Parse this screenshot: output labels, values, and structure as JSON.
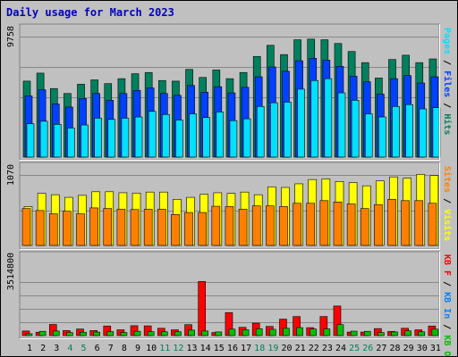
{
  "title": "Daily usage for March 2023",
  "colors": {
    "background": "#c0c0c0",
    "title": "#0000c0",
    "hits": "#00805c",
    "files": "#0040ff",
    "pages": "#00e0ff",
    "visits": "#ffff00",
    "sites": "#ff8000",
    "kb_in": "#0080ff",
    "kb_out": "#00c000",
    "kb_f": "#ff0000",
    "weekend_label": "#00805c"
  },
  "chart_data": [
    {
      "type": "bar",
      "panel": "hits-files-pages",
      "series_labels": [
        "Pages",
        "Files",
        "Hits"
      ],
      "y_tick_label": "9758",
      "ylim": [
        0,
        9758
      ],
      "categories": [
        "1",
        "2",
        "3",
        "4",
        "5",
        "6",
        "7",
        "8",
        "9",
        "10",
        "11",
        "12",
        "13",
        "14",
        "15",
        "16",
        "17",
        "18",
        "19",
        "20",
        "21",
        "22",
        "23",
        "24",
        "25",
        "26",
        "27",
        "28",
        "29",
        "30",
        "31"
      ],
      "series": [
        {
          "name": "Hits",
          "values": [
            6150,
            6800,
            5550,
            5150,
            5900,
            6250,
            5950,
            6350,
            6750,
            6850,
            6200,
            6150,
            7100,
            6450,
            7050,
            6350,
            6850,
            8150,
            9050,
            8300,
            9500,
            9550,
            9500,
            9200,
            8550,
            7650,
            6400,
            7900,
            8250,
            7650,
            7950
          ]
        },
        {
          "name": "Files",
          "values": [
            4950,
            5450,
            4300,
            4050,
            4750,
            5150,
            4600,
            5150,
            5400,
            5600,
            5150,
            5000,
            5800,
            5250,
            5700,
            5200,
            5650,
            6500,
            7300,
            6950,
            7800,
            8000,
            7850,
            7350,
            6550,
            6100,
            5100,
            6350,
            6600,
            6000,
            6500
          ]
        },
        {
          "name": "Pages",
          "values": [
            2700,
            2900,
            2650,
            2350,
            2600,
            3150,
            3050,
            3150,
            3250,
            3700,
            3450,
            3000,
            3500,
            3200,
            3650,
            2950,
            3100,
            4100,
            4400,
            4450,
            5500,
            6200,
            6350,
            5200,
            4600,
            3500,
            3250,
            4100,
            4250,
            3900,
            4000
          ]
        }
      ]
    },
    {
      "type": "bar",
      "panel": "visits-sites",
      "series_labels": [
        "Sites",
        "Visits"
      ],
      "y_tick_label": "1070",
      "ylim": [
        0,
        1070
      ],
      "categories": [
        "1",
        "2",
        "3",
        "4",
        "5",
        "6",
        "7",
        "8",
        "9",
        "10",
        "11",
        "12",
        "13",
        "14",
        "15",
        "16",
        "17",
        "18",
        "19",
        "20",
        "21",
        "22",
        "23",
        "24",
        "25",
        "26",
        "27",
        "28",
        "29",
        "30",
        "31"
      ],
      "series": [
        {
          "name": "Visits",
          "values": [
            590,
            790,
            770,
            730,
            760,
            815,
            815,
            800,
            795,
            810,
            810,
            700,
            730,
            775,
            800,
            790,
            810,
            770,
            890,
            880,
            935,
            1000,
            1010,
            970,
            955,
            905,
            980,
            1040,
            1020,
            1080,
            1060
          ]
        },
        {
          "name": "Sites",
          "values": [
            560,
            530,
            480,
            520,
            480,
            570,
            560,
            550,
            545,
            550,
            550,
            470,
            500,
            500,
            595,
            590,
            550,
            600,
            600,
            590,
            640,
            640,
            680,
            660,
            630,
            560,
            620,
            700,
            680,
            680,
            640
          ]
        }
      ]
    },
    {
      "type": "bar",
      "panel": "kbytes",
      "series_labels": [
        "KB F",
        "KB In",
        "KB Out"
      ],
      "y_tick_label": "3514800",
      "ylim": [
        0,
        3514800
      ],
      "categories": [
        "1",
        "2",
        "3",
        "4",
        "5",
        "6",
        "7",
        "8",
        "9",
        "10",
        "11",
        "12",
        "13",
        "14",
        "15",
        "16",
        "17",
        "18",
        "19",
        "20",
        "21",
        "22",
        "23",
        "24",
        "25",
        "26",
        "27",
        "28",
        "29",
        "30",
        "31"
      ],
      "series": [
        {
          "name": "KB F",
          "values": [
            300000,
            220000,
            730000,
            330000,
            430000,
            330000,
            630000,
            380000,
            650000,
            640000,
            480000,
            380000,
            720000,
            3550000,
            200000,
            1510000,
            540000,
            820000,
            600000,
            1080000,
            1250000,
            520000,
            1250000,
            1940000,
            230000,
            230000,
            460000,
            270000,
            480000,
            380000,
            630000
          ]
        },
        {
          "name": "KB In",
          "values": [
            0,
            0,
            0,
            0,
            0,
            0,
            0,
            0,
            0,
            0,
            0,
            0,
            0,
            0,
            0,
            0,
            0,
            0,
            0,
            0,
            0,
            0,
            0,
            0,
            0,
            0,
            0,
            0,
            0,
            0,
            0
          ]
        },
        {
          "name": "KB Out",
          "values": [
            120000,
            280000,
            300000,
            200000,
            220000,
            230000,
            260000,
            200000,
            280000,
            260000,
            250000,
            250000,
            360000,
            300000,
            240000,
            420000,
            380000,
            450000,
            410000,
            480000,
            520000,
            430000,
            440000,
            720000,
            290000,
            280000,
            200000,
            240000,
            310000,
            250000,
            420000
          ]
        }
      ]
    }
  ]
}
